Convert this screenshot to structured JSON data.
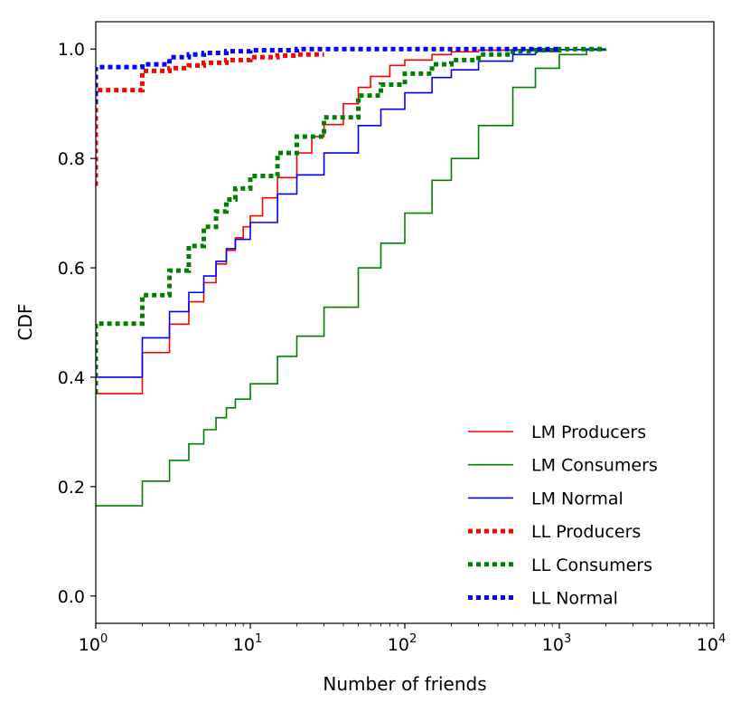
{
  "chart_data": {
    "type": "line",
    "xscale": "log",
    "xlabel": "Number of friends",
    "ylabel": "CDF",
    "xlim": [
      1,
      10000
    ],
    "ylim": [
      -0.05,
      1.05
    ],
    "x_ticks": [
      {
        "value": 1,
        "base": "10",
        "exp": "0"
      },
      {
        "value": 10,
        "base": "10",
        "exp": "1"
      },
      {
        "value": 100,
        "base": "10",
        "exp": "2"
      },
      {
        "value": 1000,
        "base": "10",
        "exp": "3"
      },
      {
        "value": 10000,
        "base": "10",
        "exp": "4"
      }
    ],
    "y_ticks": [
      {
        "value": 0.0,
        "label": "0.0"
      },
      {
        "value": 0.2,
        "label": "0.2"
      },
      {
        "value": 0.4,
        "label": "0.4"
      },
      {
        "value": 0.6,
        "label": "0.6"
      },
      {
        "value": 0.8,
        "label": "0.8"
      },
      {
        "value": 1.0,
        "label": "1.0"
      }
    ],
    "legend_position": "lower-right",
    "series": [
      {
        "name": "LM Producers",
        "color": "#ff0000",
        "style": "solid",
        "x": [
          1,
          2,
          3,
          4,
          5,
          6,
          7,
          8,
          9,
          10,
          12,
          15,
          20,
          25,
          30,
          40,
          50,
          60,
          80,
          100,
          150,
          200,
          300,
          500,
          1000
        ],
        "y": [
          0.37,
          0.445,
          0.497,
          0.538,
          0.573,
          0.607,
          0.632,
          0.655,
          0.675,
          0.695,
          0.728,
          0.765,
          0.81,
          0.84,
          0.862,
          0.9,
          0.93,
          0.95,
          0.97,
          0.98,
          0.99,
          0.995,
          0.998,
          0.999,
          1.0
        ]
      },
      {
        "name": "LM Consumers",
        "color": "#008000",
        "style": "solid",
        "x": [
          1,
          2,
          3,
          4,
          5,
          6,
          7,
          8,
          10,
          15,
          20,
          30,
          50,
          70,
          100,
          150,
          200,
          300,
          500,
          700,
          1000,
          1500,
          2000
        ],
        "y": [
          0.165,
          0.21,
          0.248,
          0.278,
          0.304,
          0.326,
          0.344,
          0.36,
          0.388,
          0.438,
          0.475,
          0.528,
          0.6,
          0.645,
          0.7,
          0.76,
          0.8,
          0.86,
          0.93,
          0.965,
          0.99,
          0.998,
          1.0
        ]
      },
      {
        "name": "LM Normal",
        "color": "#0000ff",
        "style": "solid",
        "x": [
          1,
          2,
          3,
          4,
          5,
          6,
          7,
          8,
          10,
          15,
          20,
          30,
          50,
          70,
          100,
          150,
          200,
          300,
          500,
          700,
          1000,
          1500,
          2000
        ],
        "y": [
          0.4,
          0.472,
          0.52,
          0.555,
          0.585,
          0.612,
          0.635,
          0.652,
          0.683,
          0.735,
          0.77,
          0.81,
          0.86,
          0.89,
          0.92,
          0.948,
          0.962,
          0.978,
          0.99,
          0.996,
          0.999,
          1.0,
          1.0
        ]
      },
      {
        "name": "LL Producers",
        "color": "#ff0000",
        "style": "dotted",
        "x": [
          1,
          1,
          2,
          2,
          3,
          4,
          5,
          7,
          10,
          15,
          20,
          30
        ],
        "y": [
          0.75,
          0.925,
          0.925,
          0.96,
          0.965,
          0.97,
          0.975,
          0.98,
          0.985,
          0.988,
          0.99,
          0.99
        ]
      },
      {
        "name": "LL Consumers",
        "color": "#008000",
        "style": "dotted",
        "x": [
          1,
          1,
          2,
          2,
          3,
          4,
          5,
          6,
          7,
          8,
          10,
          15,
          20,
          30,
          50,
          70,
          100,
          150,
          200,
          300,
          500,
          700,
          1000,
          2000
        ],
        "y": [
          0.37,
          0.498,
          0.498,
          0.55,
          0.595,
          0.64,
          0.675,
          0.703,
          0.725,
          0.745,
          0.768,
          0.81,
          0.84,
          0.875,
          0.915,
          0.935,
          0.955,
          0.972,
          0.98,
          0.99,
          0.996,
          0.998,
          1.0,
          1.0
        ]
      },
      {
        "name": "LL Normal",
        "color": "#0000ff",
        "style": "dotted",
        "x": [
          1,
          1,
          2,
          3,
          4,
          5,
          7,
          10,
          20,
          50,
          100,
          1000
        ],
        "y": [
          0.9,
          0.967,
          0.972,
          0.985,
          0.99,
          0.993,
          0.996,
          0.998,
          1.0,
          1.0,
          1.0,
          1.0
        ]
      }
    ]
  }
}
